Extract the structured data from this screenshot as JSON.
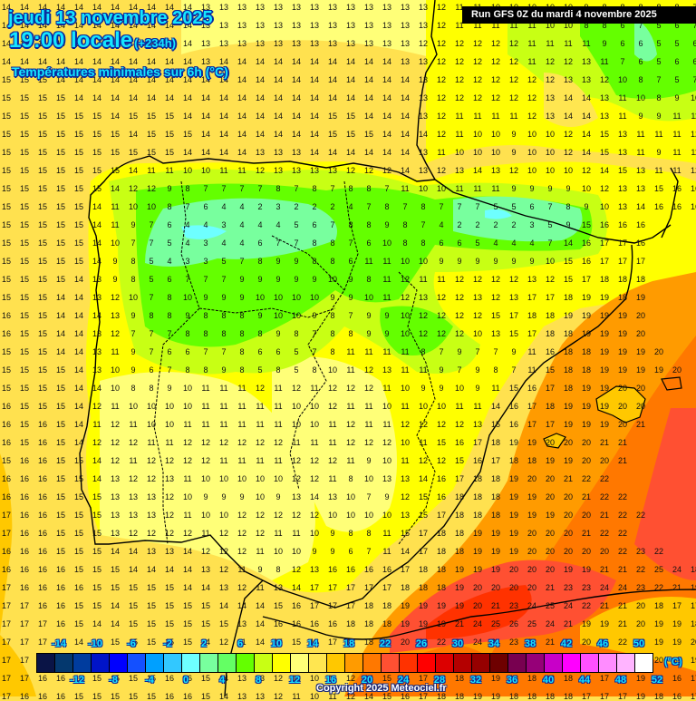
{
  "header": {
    "date_line": "jeudi 13 novembre 2025",
    "time_line": "19:00 locale",
    "offset": "(+234h)",
    "parameter": "Températures minimales sur 6h (°C)",
    "run_info": "Run GFS 0Z du mardi 4 novembre 2025"
  },
  "footer": {
    "copyright": "Copyright 2025 Meteociel.fr",
    "unit": "(°C)"
  },
  "legend": {
    "colors": [
      "#0a1446",
      "#04386e",
      "#003c9e",
      "#0014c8",
      "#0000ff",
      "#1450ff",
      "#00a0ff",
      "#32c8ff",
      "#6effff",
      "#78ff9e",
      "#64ff64",
      "#64ff00",
      "#c8ff14",
      "#ffff00",
      "#ffff78",
      "#ffe650",
      "#ffc800",
      "#ff9b00",
      "#ff7800",
      "#ff5032",
      "#ff3200",
      "#ff0000",
      "#dc0000",
      "#b40000",
      "#960000",
      "#6e0000",
      "#780050",
      "#960078",
      "#c800c8",
      "#ff00ff",
      "#ff50ff",
      "#ff8cff",
      "#ffb4ff",
      "#ffffff"
    ],
    "top_ticks": [
      "-14",
      "-10",
      "-6",
      "-2",
      "2",
      "6",
      "10",
      "14",
      "18",
      "22",
      "26",
      "30",
      "34",
      "38",
      "42",
      "46",
      "50"
    ],
    "bottom_ticks": [
      "-12",
      "-8",
      "-4",
      "0",
      "4",
      "8",
      "12",
      "16",
      "20",
      "24",
      "28",
      "32",
      "36",
      "40",
      "44",
      "48",
      "52"
    ]
  },
  "map": {
    "region": "Iberian Peninsula",
    "grid_rows": [
      "14 14 14 14 14 14 14 14 14 14 14 13 13 13 13 13 13 13 13 13 13 13 13 13 12 11 11 10 10 10 10 10 9 8 8 8 8 8 7",
      "14 14 14 14 14 14 14 14 14 14 14 13 13 13 13 13 13 13 13 13 13 13 13 13 12 11 11 11 11 11 10 10 8 8 6 7 5 6 7",
      "14 14 14 14 14 14 14 14 14 14 14 13 13 13 13 13 13 13 13 13 13 13 13 12 12 12 12 12 12 11 11 11 11 9 6 6 5 5 6",
      "14 14 14 14 14 14 14 14 14 14 14 13 14 14 14 14 14 14 14 14 14 14 13 13 12 12 12 12 12 11 12 12 13 11 7 6 5 6 6",
      "15 15 15 14 14 14 14 14 14 14 14 14 14 14 14 14 14 14 14 14 14 14 14 13 12 12 12 12 12 12 12 13 13 12 10 8 7 5 7",
      "15 15 15 15 14 14 14 14 14 14 14 14 14 14 14 14 14 14 14 14 14 14 14 13 12 12 12 12 12 12 13 14 14 13 11 10 8 9 10",
      "15 15 15 15 15 15 14 15 15 15 14 14 14 14 14 14 14 14 15 15 14 14 14 13 12 11 11 11 11 12 13 14 14 13 11 9 9 11 11",
      "15 15 15 15 15 15 15 14 15 15 15 14 14 14 14 14 14 14 15 15 15 14 14 14 12 11 10 10 9 10 10 12 14 15 13 11 11 11 12",
      "15 15 15 15 15 15 15 15 15 15 14 14 14 14 13 13 13 14 14 14 14 14 14 13 11 10 10 10 9 10 10 12 14 15 13 11 9 11 11",
      "15 15 15 15 15 15 15 14 11 11 10 10 11 11 12 13 13 13 13 12 12 12 14 13 12 13 14 13 12 10 10 10 12 14 15 13 11 11 12",
      "15 15 15 15 15 15 14 12 12 9 8 7 7 7 7 8 7 8 7 8 8 7 11 10 10 11 11 11 9 9 9 9 10 12 13 13 15 16 16",
      "15 15 15 15 15 14 11 10 10 8 7 6 4 4 2 3 2 2 2 4 7 8 7 8 7 7 7 5 5 6 7 8 9 10 13 14 16 16 16",
      "15 15 15 15 15 14 11 9 7 6 4 4 3 4 4 4 5 6 7 8 8 9 8 7 4 2 2 2 2 3 5 9 15 16 16 16",
      "15 15 15 15 15 14 10 7 7 5 4 3 4 4 6 7 7 8 8 7 6 10 8 8 6 6 5 4 4 4 7 14 16 17 17 16",
      "15 15 15 15 15 14 9 8 5 4 3 3 5 7 8 9 9 8 8 6 11 11 10 10 9 9 9 9 9 9 10 15 16 17 17 17",
      "15 15 15 15 14 13 9 8 5 6 7 7 7 9 9 9 9 9 10 9 8 11 12 11 11 12 12 12 12 13 12 15 17 18 18 18",
      "15 15 15 14 14 13 12 10 7 8 10 9 9 9 10 10 10 10 9 9 10 11 12 13 12 12 13 12 13 17 17 18 19 19 18 19",
      "16 15 15 14 14 14 13 9 8 8 9 8 8 8 9 10 10 9 8 7 9 9 10 12 12 12 12 15 17 18 18 19 19 19 19 20",
      "16 15 15 14 14 13 12 7 7 7 8 8 8 8 8 9 8 7 8 8 9 9 10 12 12 12 10 13 15 17 18 18 19 19 19 20",
      "15 15 15 14 14 13 11 9 7 6 6 7 7 8 6 6 5 7 8 11 11 11 11 8 7 9 7 7 9 11 16 18 18 19 19 19 20",
      "15 15 15 15 14 13 10 9 6 7 8 8 9 8 5 8 5 8 10 11 12 13 11 11 9 7 9 8 7 11 15 18 18 19 19 19 19 20",
      "15 15 15 15 14 14 10 8 8 9 10 11 11 11 12 11 12 11 12 12 12 11 10 9 9 10 9 11 15 16 17 18 19 19 20 20",
      "16 15 15 15 14 12 11 10 10 10 10 11 11 11 11 11 10 10 12 11 11 10 11 10 10 11 11 14 16 17 18 19 19 19 20 20",
      "16 15 16 15 14 11 12 11 10 10 11 11 11 11 11 11 10 10 11 12 11 11 12 12 12 12 13 15 16 17 17 19 19 19 20 21",
      "16 15 16 15 14 12 12 12 11 11 12 12 12 12 12 12 11 11 11 12 12 12 10 11 15 16 17 18 19 19 20 20 20 21 21",
      "15 16 16 15 15 14 12 11 12 12 12 12 11 11 11 11 12 12 12 11 9 10 11 12 12 15 16 17 18 18 19 19 20 20 21",
      "16 16 16 15 15 14 13 12 12 13 11 10 10 10 10 10 12 12 11 8 10 13 13 14 16 17 18 18 19 20 20 21 22 22",
      "16 16 16 15 15 15 13 13 13 12 10 9 9 9 10 9 13 14 13 10 7 9 12 15 16 18 18 18 19 19 20 20 21 22 22",
      "17 16 16 15 15 15 13 13 13 12 11 10 10 12 12 12 12 12 10 10 10 10 13 15 17 18 18 18 19 19 19 20 20 21 22 22",
      "17 16 16 15 15 15 13 12 12 12 12 11 12 12 12 11 11 10 9 8 8 11 15 17 18 18 19 19 19 20 20 20 21 22 22",
      "16 16 16 15 15 15 14 14 13 13 14 12 12 12 11 10 10 9 9 6 7 11 14 17 18 18 19 19 19 20 20 20 20 20 22 23 22",
      "16 16 16 16 15 15 15 14 14 14 14 13 12 11 9 8 12 13 16 16 16 16 17 18 18 19 19 19 20 20 20 19 19 21 21 22 25 24 18",
      "17 16 16 16 16 15 15 15 15 15 14 14 13 12 11 13 14 17 17 17 17 17 18 18 18 19 20 20 20 20 21 23 23 24 24 23 22 21 19",
      "17 17 16 16 15 15 14 15 15 15 15 15 14 14 14 15 16 17 17 17 18 18 19 19 19 19 20 21 23 24 25 24 22 21 21 20 18 17 17",
      "17 17 17 16 15 14 14 15 15 15 15 15 15 13 14 16 16 16 16 18 18 18 19 19 19 21 24 25 26 25 24 21 19 19 21 20 19 19 18",
      "17 17 17 16 14 14 15 15 15 15 15 14 12 11 14 15 15 16 17 18 18 19 20 20 22 24 24 24 23 23 21 20 20 21 22 22 19 19 20",
      "17 17 16 15 15 15 16 15 15 16 16 15 14 13 13 12 11 10 11 13 16 17 18 18 19 19 19 20 20 21 21 22 22 21 20 19 20 19 19",
      "17 17 16 16 15 15 15 15 15 16 16 15 14 13 13 12 11 10 11 12 14 15 16 17 18 18 19 19 18 18 18 18 17 17 17 19 18 16 17",
      "17 16 16 16 15 15 15 15 15 16 16 15 14 13 13 12 11 10 11 12 14 15 16 17 18 18 19 19 18 18 18 18 17 17 17 19 18 16 17"
    ]
  }
}
